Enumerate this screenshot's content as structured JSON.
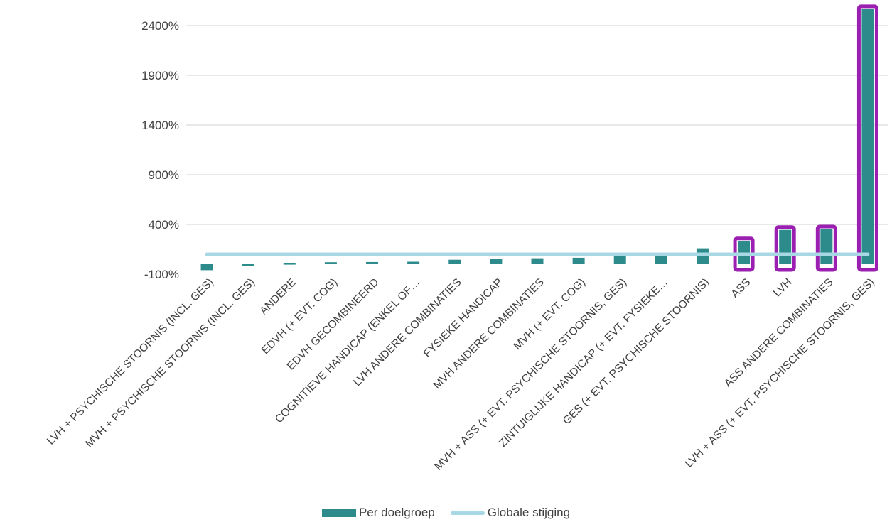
{
  "chart_data": {
    "type": "bar",
    "title": "",
    "xlabel": "",
    "ylabel": "",
    "y_ticks": [
      "-100%",
      "400%",
      "900%",
      "1400%",
      "1900%",
      "2400%"
    ],
    "ylim": [
      -100,
      2650
    ],
    "grid": true,
    "legend_position": "bottom",
    "categories": [
      "LVH + PSYCHISCHE STOORNIS (INCL. GES)",
      "MVH + PSYCHISCHE STOORNIS (INCL. GES)",
      "ANDERE",
      "EDVH (+ EVT. COG)",
      "EDVH GECOMBINEERD",
      "COGNITIEVE HANDICAP (ENKEL OF…",
      "LVH ANDERE COMBINATIES",
      "FYSIEKE HANDICAP",
      "MVH ANDERE COMBINATIES",
      "MVH (+ EVT. COG)",
      "MVH + ASS (+ EVT. PSYCHISCHE STOORNIS, GES)",
      "ZINTUIGLIJKE HANDICAP (+ EVT. FYSIEKE…",
      "GES (+ EVT. PSYCHISCHE STOORNIS)",
      "ASS",
      "LVH",
      "ASS ANDERE COMBINATIES",
      "LVH + ASS (+ EVT. PSYCHISCHE STOORNIS, GES)"
    ],
    "series": [
      {
        "name": "Per doelgroep",
        "type": "bar",
        "values": [
          -60,
          -10,
          10,
          20,
          22,
          25,
          45,
          50,
          60,
          65,
          100,
          100,
          160,
          230,
          345,
          350,
          2565
        ]
      },
      {
        "name": "Globale stijging",
        "type": "line",
        "value": 100
      }
    ],
    "highlighted_categories": [
      "ASS",
      "LVH",
      "ASS ANDERE COMBINATIES",
      "LVH + ASS (+ EVT. PSYCHISCHE STOORNIS, GES)"
    ],
    "colors": {
      "bar": "#2e8b8b",
      "line": "#a8d8e4",
      "highlight": "#9b1fb1",
      "grid": "#d9d9d9",
      "text": "#404040"
    }
  },
  "legend": {
    "bar_label": "Per doelgroep",
    "line_label": "Globale stijging"
  }
}
